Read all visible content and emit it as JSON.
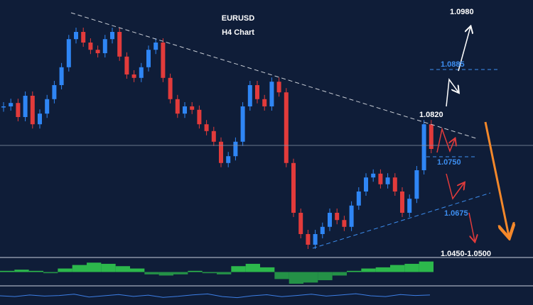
{
  "chart_data": {
    "type": "candlestick",
    "title": "EURUSD",
    "subtitle": "H4 Chart",
    "values": [
      1.075,
      1.0758,
      1.0725,
      1.0775,
      1.0708,
      1.0733,
      1.0767,
      1.08,
      1.0842,
      1.0908,
      1.0925,
      1.09,
      1.0883,
      1.0875,
      1.0908,
      1.0925,
      1.0867,
      1.0825,
      1.0817,
      1.0842,
      1.0883,
      1.09,
      1.0817,
      1.0767,
      1.0733,
      1.075,
      1.0742,
      1.0708,
      1.0692,
      1.0667,
      1.0617,
      1.0633,
      1.0667,
      1.075,
      1.08,
      1.0767,
      1.075,
      1.0808,
      1.0783,
      1.0617,
      1.05,
      1.045,
      1.0425,
      1.045,
      1.0467,
      1.05,
      1.0483,
      1.0467,
      1.0517,
      1.055,
      1.0583,
      1.0592,
      1.0567,
      1.0583,
      1.055,
      1.05,
      1.0533,
      1.06,
      1.0708,
      1.065
    ],
    "color_up": "#2f86f5",
    "color_down": "#e23b3b",
    "ylim": [
      1.04,
      1.1
    ],
    "levels": [
      "1.0980",
      "1.0885",
      "1.0820",
      "1.0750",
      "1.0675",
      "1.0450-1.0500"
    ],
    "oscillator": {
      "values": [
        0.1,
        0.2,
        0.1,
        -0.1,
        0.3,
        0.6,
        0.8,
        0.7,
        0.5,
        0.3,
        -0.2,
        -0.3,
        -0.2,
        0.1,
        -0.1,
        -0.2,
        0.5,
        0.7,
        0.4,
        -0.6,
        -1.0,
        -0.9,
        -0.7,
        -0.3,
        0.1,
        0.3,
        0.4,
        0.6,
        0.7,
        0.9
      ],
      "color": "#2cb84c",
      "ylim": [
        -1,
        1
      ]
    },
    "signal": {
      "values": [
        50,
        45,
        55,
        48,
        52,
        60,
        42,
        50,
        58,
        46,
        54,
        40,
        47,
        56,
        62,
        45,
        38,
        50,
        57,
        44,
        52,
        60,
        48,
        55,
        63,
        50,
        45,
        58,
        52,
        55
      ],
      "color": "#3d7fe6",
      "ylim": [
        0,
        100
      ]
    }
  }
}
